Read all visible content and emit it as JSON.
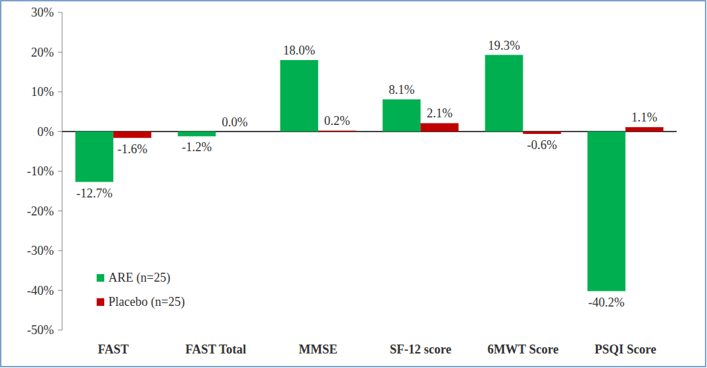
{
  "chart_data": {
    "type": "bar",
    "categories": [
      "FAST",
      "FAST Total",
      "MMSE",
      "SF-12 score",
      "6MWT Score",
      "PSQI Score"
    ],
    "series": [
      {
        "name": "ARE (n=25)",
        "color": "#00b050",
        "values": [
          -12.7,
          -1.2,
          18.0,
          8.1,
          19.3,
          -40.2
        ],
        "value_labels": [
          "-12.7%",
          "-1.2%",
          "18.0%",
          "8.1%",
          "19.3%",
          "-40.2%"
        ]
      },
      {
        "name": "Placebo (n=25)",
        "color": "#c00000",
        "values": [
          -1.6,
          0.0,
          0.2,
          2.1,
          -0.6,
          1.1
        ],
        "value_labels": [
          "-1.6%",
          "0.0%",
          "0.2%",
          "2.1%",
          "-0.6%",
          "1.1%"
        ]
      }
    ],
    "ylim": [
      -50,
      30
    ],
    "yticks": [
      {
        "value": 30,
        "label": "30%"
      },
      {
        "value": 20,
        "label": "20%"
      },
      {
        "value": 10,
        "label": "10%"
      },
      {
        "value": 0,
        "label": "0%"
      },
      {
        "value": -10,
        "label": "-10%"
      },
      {
        "value": -20,
        "label": "-20%"
      },
      {
        "value": -30,
        "label": "-30%"
      },
      {
        "value": -40,
        "label": "-40%"
      },
      {
        "value": -50,
        "label": "-50%"
      }
    ],
    "grid": false,
    "data_labels": true,
    "legend": "lower left"
  }
}
